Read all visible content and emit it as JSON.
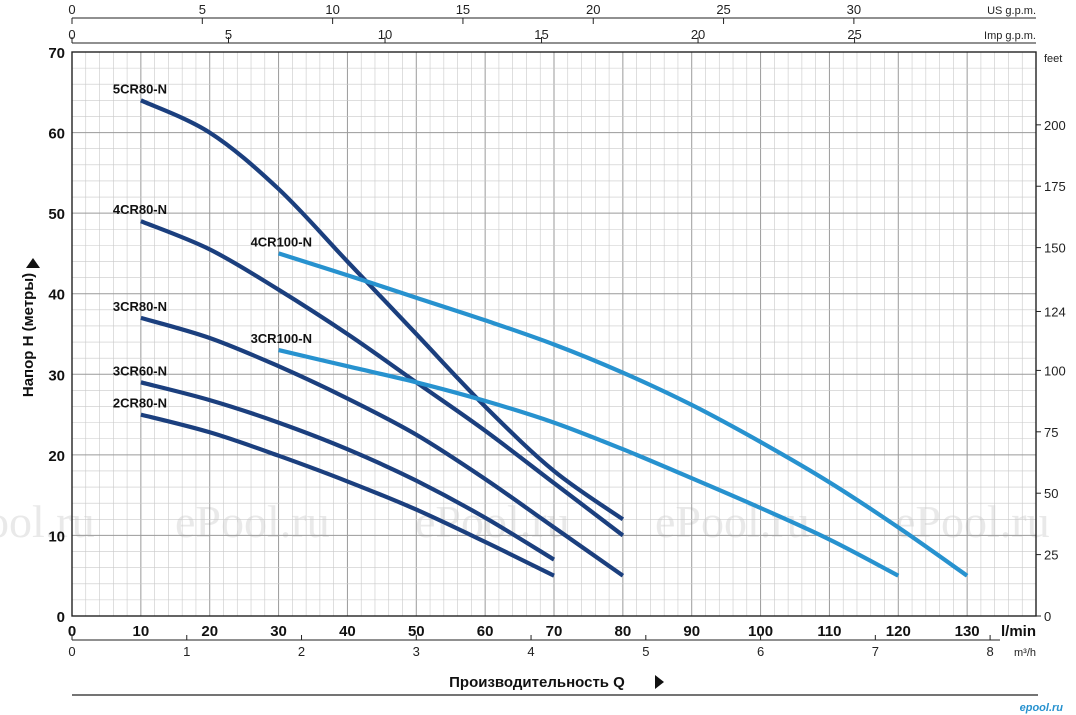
{
  "chart_data": {
    "type": "line",
    "xlabel": "Производительность Q",
    "ylabel": "Напор H (метры)",
    "x_unit": "l/min",
    "xlim": [
      0,
      140
    ],
    "ylim": [
      0,
      70
    ],
    "x_ticks": [
      "0",
      "10",
      "20",
      "30",
      "40",
      "50",
      "60",
      "70",
      "80",
      "90",
      "100",
      "110",
      "120",
      "130"
    ],
    "y_ticks": [
      "0",
      "10",
      "20",
      "30",
      "40",
      "50",
      "60",
      "70"
    ],
    "top_axis_us": {
      "unit": "US g.p.m.",
      "ticks": [
        "0",
        "5",
        "10",
        "15",
        "20",
        "25",
        "30"
      ]
    },
    "top_axis_imp": {
      "unit": "Imp g.p.m.",
      "ticks": [
        "0",
        "5",
        "10",
        "15",
        "20",
        "25"
      ]
    },
    "bottom_axis_m3h": {
      "unit": "m³/h",
      "ticks": [
        "0",
        "1",
        "2",
        "3",
        "4",
        "5",
        "6",
        "7",
        "8"
      ]
    },
    "right_axis_feet": {
      "unit": "feet",
      "ticks": [
        "0",
        "25",
        "50",
        "75",
        "100",
        "124",
        "150",
        "175",
        "200"
      ]
    },
    "grid": true,
    "watermark": "ePool.ru",
    "logo_text": "epool.ru",
    "series": [
      {
        "name": "5CR80-N",
        "color": "#1b3f7e",
        "x": [
          10,
          20,
          30,
          40,
          50,
          60,
          70,
          80
        ],
        "y": [
          64,
          60,
          53,
          44,
          35,
          26,
          18,
          12
        ]
      },
      {
        "name": "4CR80-N",
        "color": "#1b3f7e",
        "x": [
          10,
          20,
          30,
          40,
          50,
          60,
          70,
          80
        ],
        "y": [
          49,
          45.5,
          40.5,
          35,
          29,
          23,
          16.5,
          10
        ]
      },
      {
        "name": "3CR80-N",
        "color": "#1b3f7e",
        "x": [
          10,
          20,
          30,
          40,
          50,
          60,
          70,
          80
        ],
        "y": [
          37,
          34.5,
          31,
          27,
          22.5,
          17,
          11,
          5
        ]
      },
      {
        "name": "3CR60-N",
        "color": "#1b3f7e",
        "x": [
          10,
          20,
          30,
          40,
          50,
          60,
          70
        ],
        "y": [
          29,
          26.8,
          24,
          20.7,
          16.8,
          12.2,
          7
        ]
      },
      {
        "name": "2CR80-N",
        "color": "#1b3f7e",
        "x": [
          10,
          20,
          30,
          40,
          50,
          60,
          70
        ],
        "y": [
          25,
          22.8,
          19.9,
          16.7,
          13.2,
          9.2,
          5
        ]
      },
      {
        "name": "4CR100-N",
        "color": "#2792cf",
        "x": [
          30,
          40,
          50,
          60,
          70,
          80,
          90,
          100,
          110,
          120,
          130
        ],
        "y": [
          45,
          42.3,
          39.5,
          36.7,
          33.7,
          30.2,
          26.2,
          21.6,
          16.6,
          11,
          5
        ]
      },
      {
        "name": "3CR100-N",
        "color": "#2792cf",
        "x": [
          30,
          40,
          50,
          60,
          70,
          80,
          90,
          100,
          110,
          120
        ],
        "y": [
          33,
          31,
          29,
          26.7,
          24,
          20.7,
          17.1,
          13.4,
          9.5,
          5
        ]
      }
    ]
  }
}
